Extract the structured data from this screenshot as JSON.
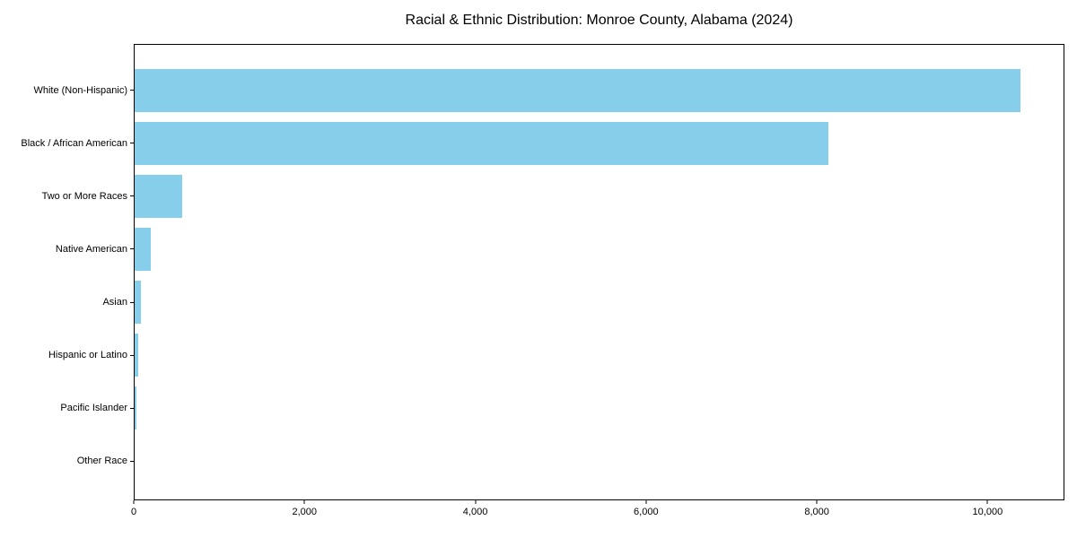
{
  "chart_data": {
    "type": "bar",
    "orientation": "horizontal",
    "title": "Racial & Ethnic Distribution: Monroe County, Alabama (2024)",
    "categories": [
      "White (Non-Hispanic)",
      "Black / African American",
      "Two or More Races",
      "Native American",
      "Asian",
      "Hispanic or Latino",
      "Pacific Islander",
      "Other Race"
    ],
    "values": [
      10390,
      8140,
      555,
      185,
      75,
      45,
      20,
      0
    ],
    "xlabel": "",
    "ylabel": "",
    "xlim": [
      0,
      10900
    ],
    "xticks": [
      0,
      2000,
      4000,
      6000,
      8000,
      10000
    ],
    "xtick_labels": [
      "0",
      "2,000",
      "4,000",
      "6,000",
      "8,000",
      "10,000"
    ],
    "bar_color": "#87CEEB",
    "axis_color": "#000000",
    "background_color": "#FFFFFF",
    "grid": false,
    "legend": "none",
    "sort": "descending, largest bar at top"
  }
}
